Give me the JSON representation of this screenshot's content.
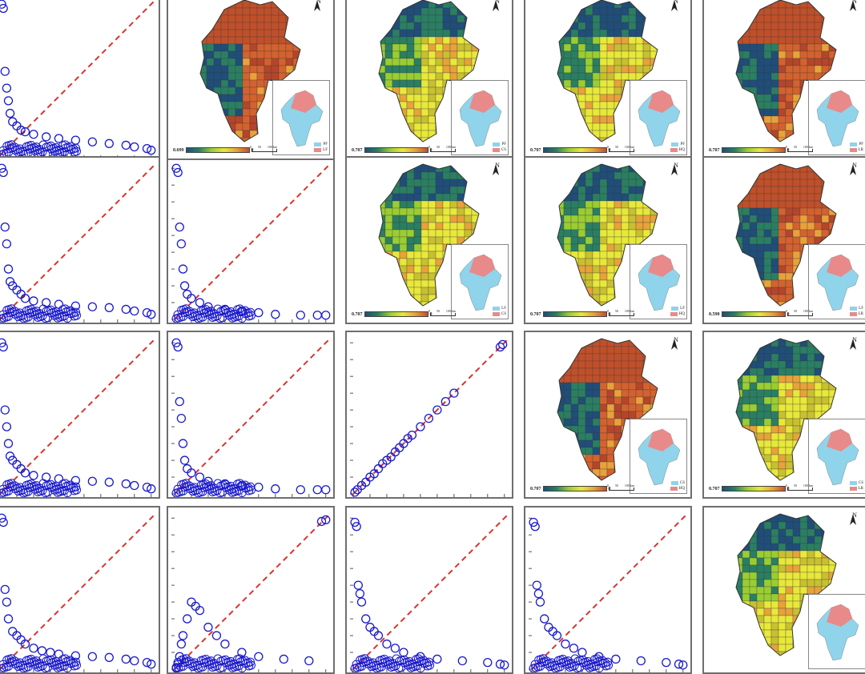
{
  "colors": {
    "points": "#1a1acc",
    "diagonal": "#d9342b",
    "low": "#1f4e79",
    "high": "#c0502a",
    "inset_a": "#8fd4ea",
    "inset_b": "#e88a8a"
  },
  "maps": [
    {
      "id": "r0c1",
      "min": "0.699",
      "max": "0",
      "legend": [
        "PF",
        "LF"
      ],
      "palette": "red"
    },
    {
      "id": "r0c2",
      "min": "0.707",
      "max": "0",
      "legend": [
        "PF",
        "CS"
      ],
      "palette": "yellow"
    },
    {
      "id": "r0c3",
      "min": "0.707",
      "max": "0",
      "legend": [
        "PF",
        "HQ"
      ],
      "palette": "yellow"
    },
    {
      "id": "r0c4",
      "min": "0.707",
      "max": "0",
      "legend": [
        "PF",
        "LR"
      ],
      "palette": "red"
    },
    {
      "id": "r1c2",
      "min": "0.707",
      "max": "0",
      "legend": [
        "LF",
        "CS"
      ],
      "palette": "yellow"
    },
    {
      "id": "r1c3",
      "min": "0.707",
      "max": "0",
      "legend": [
        "LF",
        "HQ"
      ],
      "palette": "yellow"
    },
    {
      "id": "r1c4",
      "min": "0.590",
      "max": "0",
      "legend": [
        "LF",
        "LR"
      ],
      "palette": "red"
    },
    {
      "id": "r2c3",
      "min": "0.707",
      "max": "0",
      "legend": [
        "CS",
        "HQ"
      ],
      "palette": "red"
    },
    {
      "id": "r2c4",
      "min": "0.707",
      "max": "0",
      "legend": [
        "CS",
        "LR"
      ],
      "palette": "yellow"
    },
    {
      "id": "r3c4",
      "min": "",
      "max": "",
      "legend": [
        "",
        ""
      ],
      "palette": "yellow"
    }
  ],
  "north_label": "N",
  "scale_labels": [
    "0",
    "50",
    "100 km"
  ],
  "chart_data": [
    {
      "type": "scatter",
      "panel": "r0c0",
      "diagonal": true,
      "x": [
        2,
        4,
        6,
        8,
        10,
        12,
        15,
        20,
        25,
        30,
        40,
        55,
        70,
        90,
        110,
        130,
        150,
        160,
        175,
        180
      ],
      "y": [
        180,
        175,
        100,
        80,
        65,
        50,
        40,
        35,
        30,
        28,
        25,
        22,
        20,
        18,
        16,
        14,
        12,
        10,
        8,
        6
      ]
    },
    {
      "type": "scatter",
      "panel": "r1c0",
      "diagonal": true,
      "x": [
        2,
        4,
        6,
        8,
        10,
        12,
        15,
        20,
        25,
        30,
        40,
        55,
        70,
        90,
        110,
        130,
        150,
        160,
        175,
        180
      ],
      "y": [
        180,
        175,
        110,
        90,
        60,
        45,
        40,
        35,
        30,
        25,
        22,
        20,
        18,
        16,
        15,
        14,
        12,
        10,
        8,
        6
      ]
    },
    {
      "type": "scatter",
      "panel": "r1c1",
      "diagonal": true,
      "x": [
        2,
        4,
        6,
        8,
        10,
        12,
        15,
        20,
        30,
        40,
        60,
        80,
        100,
        120,
        150,
        170,
        180
      ],
      "y": [
        180,
        175,
        110,
        90,
        60,
        40,
        30,
        25,
        20,
        15,
        12,
        10,
        8,
        6,
        5,
        5,
        5
      ]
    },
    {
      "type": "scatter",
      "panel": "r2c0",
      "diagonal": true,
      "x": [
        2,
        4,
        6,
        8,
        10,
        12,
        15,
        20,
        25,
        30,
        40,
        55,
        70,
        90,
        110,
        130,
        150,
        160,
        175,
        180
      ],
      "y": [
        180,
        175,
        100,
        80,
        60,
        45,
        40,
        35,
        30,
        25,
        22,
        20,
        18,
        16,
        15,
        14,
        12,
        10,
        8,
        6
      ]
    },
    {
      "type": "scatter",
      "panel": "r2c1",
      "diagonal": true,
      "x": [
        2,
        4,
        6,
        8,
        10,
        12,
        15,
        20,
        30,
        40,
        60,
        80,
        100,
        120,
        150,
        170,
        180
      ],
      "y": [
        180,
        175,
        110,
        90,
        60,
        40,
        30,
        25,
        20,
        15,
        12,
        10,
        8,
        6,
        5,
        5,
        5
      ]
    },
    {
      "type": "scatter",
      "panel": "r2c2",
      "diagonal": true,
      "x": [
        2,
        5,
        10,
        15,
        20,
        25,
        30,
        35,
        40,
        45,
        50,
        55,
        60,
        65,
        70,
        80,
        90,
        100,
        110,
        120,
        175,
        178
      ],
      "y": [
        2,
        5,
        10,
        14,
        20,
        24,
        30,
        36,
        40,
        44,
        50,
        55,
        60,
        66,
        70,
        80,
        90,
        100,
        110,
        120,
        175,
        178
      ]
    },
    {
      "type": "scatter",
      "panel": "r3c0",
      "diagonal": true,
      "x": [
        2,
        4,
        6,
        8,
        10,
        15,
        20,
        25,
        30,
        40,
        50,
        60,
        70,
        90,
        110,
        130,
        150,
        160,
        175,
        180
      ],
      "y": [
        180,
        175,
        95,
        80,
        60,
        45,
        40,
        35,
        30,
        25,
        22,
        20,
        18,
        16,
        15,
        14,
        12,
        10,
        8,
        6
      ]
    },
    {
      "type": "scatter",
      "panel": "r3c1",
      "diagonal": true,
      "x": [
        2,
        4,
        6,
        8,
        10,
        15,
        20,
        25,
        30,
        40,
        50,
        60,
        80,
        100,
        130,
        160,
        175,
        180
      ],
      "y": [
        2,
        8,
        15,
        30,
        40,
        60,
        80,
        75,
        70,
        50,
        40,
        30,
        20,
        15,
        12,
        10,
        176,
        178
      ]
    },
    {
      "type": "scatter",
      "panel": "r3c2",
      "diagonal": true,
      "x": [
        2,
        4,
        6,
        8,
        10,
        15,
        20,
        25,
        30,
        40,
        50,
        60,
        80,
        100,
        130,
        160,
        175,
        180
      ],
      "y": [
        175,
        170,
        100,
        90,
        80,
        60,
        50,
        45,
        40,
        30,
        25,
        20,
        15,
        12,
        10,
        8,
        6,
        5
      ]
    },
    {
      "type": "scatter",
      "panel": "r3c3",
      "diagonal": true,
      "x": [
        2,
        4,
        6,
        8,
        10,
        15,
        20,
        25,
        30,
        40,
        50,
        60,
        80,
        100,
        130,
        160,
        175,
        180
      ],
      "y": [
        175,
        170,
        100,
        90,
        80,
        60,
        50,
        45,
        40,
        30,
        25,
        20,
        15,
        12,
        10,
        8,
        6,
        5
      ]
    }
  ]
}
